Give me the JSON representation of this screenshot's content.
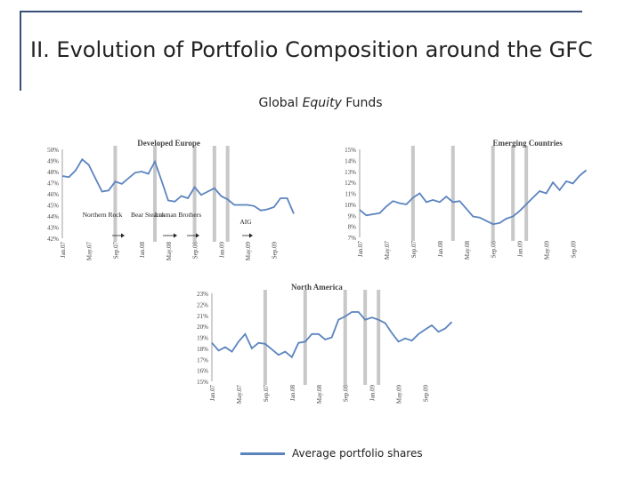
{
  "slide": {
    "title": "II. Evolution of Portfolio Composition around the GFC",
    "subtitle_pre": "Global ",
    "subtitle_em": "Equity",
    "subtitle_post": " Funds",
    "legend_label": "Average portfolio shares",
    "line_color": "#5b84bf",
    "event_bar_color": "#c8c8c8"
  },
  "chart_data": [
    {
      "type": "line",
      "title": "Developed Europe",
      "ylim": [
        42,
        50
      ],
      "yticks": [
        "42%",
        "43%",
        "44%",
        "45%",
        "46%",
        "47%",
        "48%",
        "49%",
        "50%"
      ],
      "xticks": [
        "Jan.07",
        "May.07",
        "Sep.07",
        "Jan.08",
        "May.08",
        "Sep.08",
        "Jan.09",
        "May.09",
        "Sep.09"
      ],
      "x_start": "2007-01",
      "series": [
        {
          "values": [
            47.6,
            47.5,
            48.1,
            49.1,
            48.6,
            47.4,
            46.2,
            46.3,
            47.1,
            46.9,
            47.4,
            47.9,
            48.0,
            47.8,
            48.9,
            47.2,
            45.4,
            45.3,
            45.8,
            45.6,
            46.6,
            45.9,
            46.2,
            46.5,
            45.8,
            45.5,
            45.0,
            45.0,
            45.0,
            44.9,
            44.5,
            44.6,
            44.8,
            45.6,
            45.6,
            44.2
          ]
        }
      ],
      "events": [
        {
          "label": "Northern Rock",
          "date": "2007-08"
        },
        {
          "label": "Bear Stearns",
          "date": "2008-03"
        },
        {
          "label": "Lehman Brothers",
          "date": "2008-09"
        },
        {
          "label": "AIG",
          "date": "2008-09"
        }
      ]
    },
    {
      "type": "line",
      "title": "Emerging Countries",
      "ylim": [
        7,
        15
      ],
      "yticks": [
        "7%",
        "8%",
        "9%",
        "10%",
        "11%",
        "12%",
        "13%",
        "14%",
        "15%"
      ],
      "xticks": [
        "Jan.07",
        "May.07",
        "Sep.07",
        "Jan.08",
        "May.08",
        "Sep.08",
        "Jan.09",
        "May.09",
        "Sep.09"
      ],
      "x_start": "2007-01",
      "series": [
        {
          "values": [
            9.5,
            9.0,
            9.1,
            9.2,
            9.8,
            10.3,
            10.1,
            10.0,
            10.6,
            11.0,
            10.2,
            10.4,
            10.2,
            10.7,
            10.2,
            10.3,
            9.6,
            8.9,
            8.8,
            8.5,
            8.2,
            8.3,
            8.7,
            8.9,
            9.4,
            10.0,
            10.6,
            11.2,
            11.0,
            12.0,
            11.3,
            12.1,
            11.9,
            12.6,
            13.1
          ]
        }
      ]
    },
    {
      "type": "line",
      "title": "North America",
      "ylim": [
        15,
        23
      ],
      "yticks": [
        "15%",
        "16%",
        "17%",
        "18%",
        "19%",
        "20%",
        "21%",
        "22%",
        "23%"
      ],
      "xticks": [
        "Jan.07",
        "May.07",
        "Sep.07",
        "Jan.08",
        "May.08",
        "Sep.08",
        "Jan.09",
        "May.09",
        "Sep.09"
      ],
      "x_start": "2007-01",
      "series": [
        {
          "values": [
            18.5,
            17.8,
            18.1,
            17.7,
            18.6,
            19.3,
            18.0,
            18.5,
            18.4,
            17.9,
            17.4,
            17.7,
            17.2,
            18.5,
            18.6,
            19.3,
            19.3,
            18.8,
            19.0,
            20.6,
            20.9,
            21.3,
            21.3,
            20.6,
            20.8,
            20.6,
            20.3,
            19.4,
            18.6,
            18.9,
            18.7,
            19.3,
            19.7,
            20.1,
            19.5,
            19.8,
            20.4
          ]
        }
      ]
    }
  ]
}
